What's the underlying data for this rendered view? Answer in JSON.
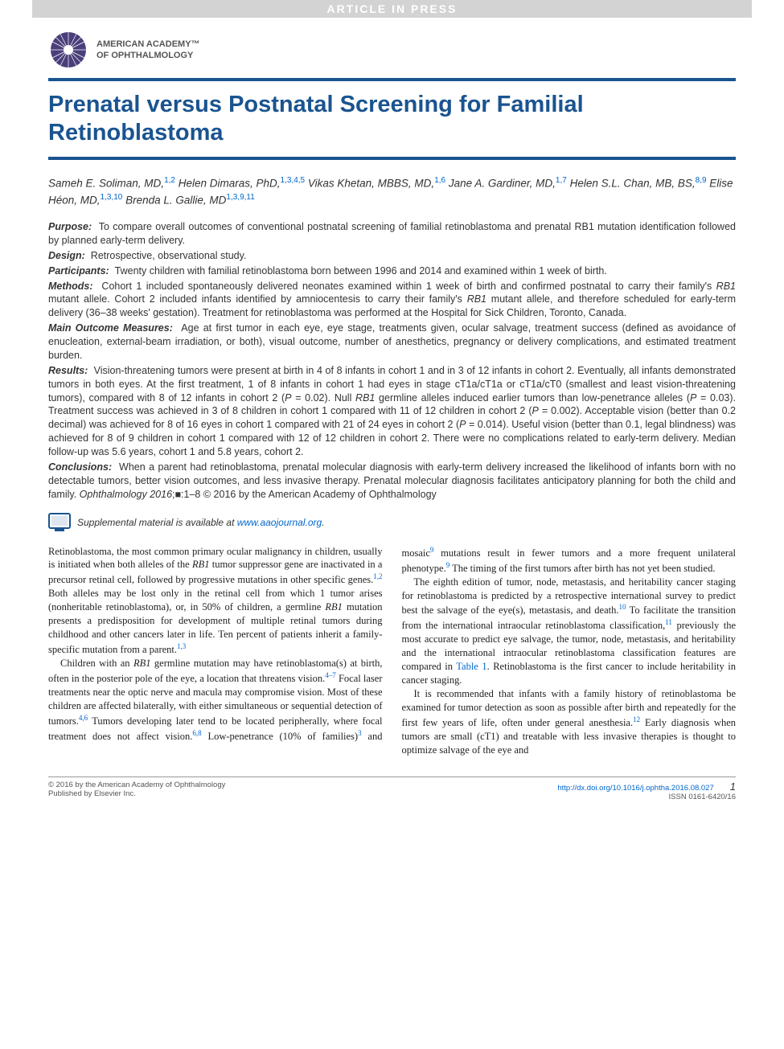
{
  "theme": {
    "accent": "#1a5490",
    "link": "#0066cc",
    "banner_bg": "#d3d3d3",
    "banner_fg": "#ffffff"
  },
  "banner": "ARTICLE IN PRESS",
  "org": {
    "line1": "AMERICAN ACADEMY™",
    "line2": "OF OPHTHALMOLOGY"
  },
  "title": "Prenatal versus Postnatal Screening for Familial Retinoblastoma",
  "authors_html": "Sameh E. Soliman, MD,<sup>1,2</sup> Helen Dimaras, PhD,<sup>1,3,4,5</sup> Vikas Khetan, MBBS, MD,<sup>1,6</sup> Jane A. Gardiner, MD,<sup>1,7</sup> Helen S.L. Chan, MB, BS,<sup>8,9</sup> Elise Héon, MD,<sup>1,3,10</sup> Brenda L. Gallie, MD<sup>1,3,9,11</sup>",
  "abstract": {
    "purpose": "To compare overall outcomes of conventional postnatal screening of familial retinoblastoma and prenatal RB1 mutation identification followed by planned early-term delivery.",
    "design": "Retrospective, observational study.",
    "participants": "Twenty children with familial retinoblastoma born between 1996 and 2014 and examined within 1 week of birth.",
    "methods": "Cohort 1 included spontaneously delivered neonates examined within 1 week of birth and confirmed postnatal to carry their family's RB1 mutant allele. Cohort 2 included infants identified by amniocentesis to carry their family's RB1 mutant allele, and therefore scheduled for early-term delivery (36–38 weeks' gestation). Treatment for retinoblastoma was performed at the Hospital for Sick Children, Toronto, Canada.",
    "measures": "Age at first tumor in each eye, eye stage, treatments given, ocular salvage, treatment success (defined as avoidance of enucleation, external-beam irradiation, or both), visual outcome, number of anesthetics, pregnancy or delivery complications, and estimated treatment burden.",
    "results": "Vision-threatening tumors were present at birth in 4 of 8 infants in cohort 1 and in 3 of 12 infants in cohort 2. Eventually, all infants demonstrated tumors in both eyes. At the first treatment, 1 of 8 infants in cohort 1 had eyes in stage cT1a/cT1a or cT1a/cT0 (smallest and least vision-threatening tumors), compared with 8 of 12 infants in cohort 2 (P = 0.02). Null RB1 germline alleles induced earlier tumors than low-penetrance alleles (P = 0.03). Treatment success was achieved in 3 of 8 children in cohort 1 compared with 11 of 12 children in cohort 2 (P = 0.002). Acceptable vision (better than 0.2 decimal) was achieved for 8 of 16 eyes in cohort 1 compared with 21 of 24 eyes in cohort 2 (P = 0.014). Useful vision (better than 0.1, legal blindness) was achieved for 8 of 9 children in cohort 1 compared with 12 of 12 children in cohort 2. There were no complications related to early-term delivery. Median follow-up was 5.6 years, cohort 1 and 5.8 years, cohort 2.",
    "conclusions": "When a parent had retinoblastoma, prenatal molecular diagnosis with early-term delivery increased the likelihood of infants born with no detectable tumors, better vision outcomes, and less invasive therapy. Prenatal molecular diagnosis facilitates anticipatory planning for both the child and family. Ophthalmology 2016;■:1–8 © 2016 by the American Academy of Ophthalmology"
  },
  "labels": {
    "purpose": "Purpose:",
    "design": "Design:",
    "participants": "Participants:",
    "methods": "Methods:",
    "measures": "Main Outcome Measures:",
    "results": "Results:",
    "conclusions": "Conclusions:"
  },
  "supplement": {
    "text": "Supplemental material is available at ",
    "link_text": "www.aaojournal.org",
    "link_suffix": "."
  },
  "body": {
    "p1": "Retinoblastoma, the most common primary ocular malignancy in children, usually is initiated when both alleles of the RB1 tumor suppressor gene are inactivated in a precursor retinal cell, followed by progressive mutations in other specific genes.",
    "p1_ref": "1,2",
    "p1_cont": " Both alleles may be lost only in the retinal cell from which 1 tumor arises (nonheritable retinoblastoma), or, in 50% of children, a germline RB1 mutation presents a predisposition for development of multiple retinal tumors during childhood and other cancers later in life. Ten percent of patients inherit a family-specific mutation from a parent.",
    "p1_ref2": "1,3",
    "p2": "Children with an RB1 germline mutation may have retinoblastoma(s) at birth, often in the posterior pole of the eye, a location that threatens vision.",
    "p2_ref": "4–7",
    "p2_cont": " Focal laser treatments near the optic nerve and macula may compromise vision. Most of these children are affected bilaterally, with either simultaneous or sequential detection of tumors.",
    "p2_ref2": "4,6",
    "p2_cont2": " Tumors developing later tend to be located peripherally, where focal treatment does not affect vision.",
    "p2_ref3": "6,8",
    "p2_cont3": " Low-penetrance (10% of families)",
    "p2_ref4": "3",
    "p2_cont4": " and mosaic",
    "p2_ref5": "9",
    "p2_cont5": " mutations result",
    "p3": "in fewer tumors and a more frequent unilateral phenotype.",
    "p3_ref": "9",
    "p3_cont": " The timing of the first tumors after birth has not yet been studied.",
    "p4": "The eighth edition of tumor, node, metastasis, and heritability cancer staging for retinoblastoma is predicted by a retrospective international survey to predict best the salvage of the eye(s), metastasis, and death.",
    "p4_ref": "10",
    "p4_cont": " To facilitate the transition from the international intraocular retinoblastoma classification,",
    "p4_ref2": "11",
    "p4_cont2": " previously the most accurate to predict eye salvage, the tumor, node, metastasis, and heritability and the international intraocular retinoblastoma classification features are compared in ",
    "p4_tbl": "Table 1",
    "p4_cont3": ". Retinoblastoma is the first cancer to include heritability in cancer staging.",
    "p5": "It is recommended that infants with a family history of retinoblastoma be examined for tumor detection as soon as possible after birth and repeatedly for the first few years of life, often under general anesthesia.",
    "p5_ref": "12",
    "p5_cont": " Early diagnosis when tumors are small (cT1) and treatable with less invasive therapies is thought to optimize salvage of the eye and"
  },
  "footer": {
    "copyright": "© 2016 by the American Academy of Ophthalmology",
    "publisher": "Published by Elsevier Inc.",
    "doi": "http://dx.doi.org/10.1016/j.ophtha.2016.08.027",
    "issn": "ISSN 0161-6420/16",
    "page": "1"
  }
}
